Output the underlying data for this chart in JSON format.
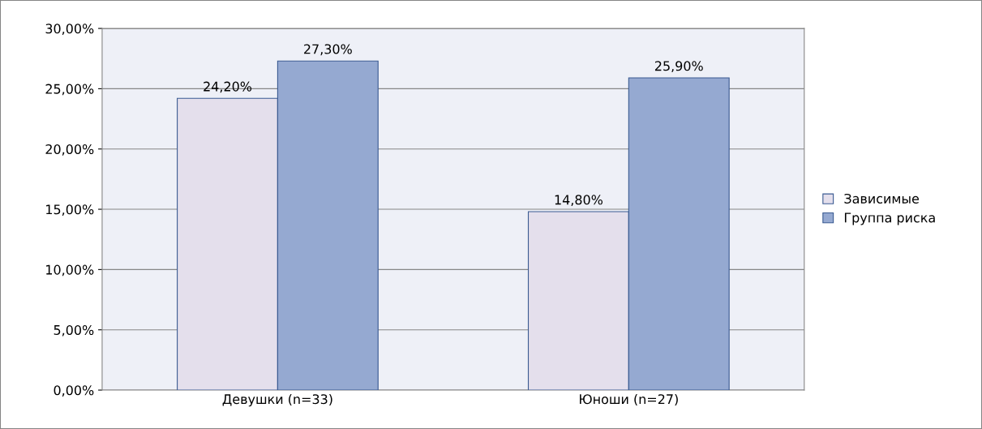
{
  "chart_data": {
    "type": "bar",
    "categories": [
      "Девушки (n=33)",
      "Юноши (n=27)"
    ],
    "series": [
      {
        "name": "Зависимые",
        "color": "#e4dfec",
        "values": [
          24.2,
          14.8
        ],
        "value_labels": [
          "24,20%",
          "14,80%"
        ]
      },
      {
        "name": "Группа риска",
        "color": "#95a9d1",
        "values": [
          27.3,
          25.9
        ],
        "value_labels": [
          "27,30%",
          "25,90%"
        ]
      }
    ],
    "ylim": [
      0,
      30
    ],
    "yticks": [
      {
        "value": 0,
        "label": "0,00%"
      },
      {
        "value": 5,
        "label": "5,00%"
      },
      {
        "value": 10,
        "label": "10,00%"
      },
      {
        "value": 15,
        "label": "15,00%"
      },
      {
        "value": 20,
        "label": "20,00%"
      },
      {
        "value": 25,
        "label": "25,00%"
      },
      {
        "value": 30,
        "label": "30,00%"
      }
    ],
    "grid": "y",
    "legend": "right"
  }
}
